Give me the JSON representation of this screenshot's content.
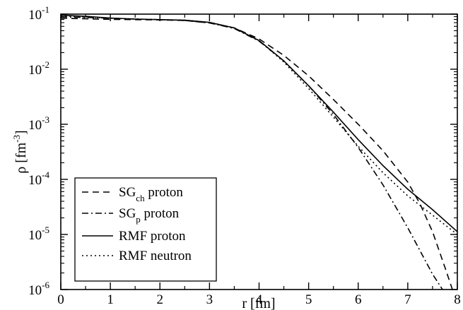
{
  "chart_data": {
    "type": "line",
    "xlabel": "r [fm]",
    "ylabel": {
      "main": "ρ [fm",
      "sup": "-3",
      "close": "]"
    },
    "xlim": [
      0,
      8
    ],
    "ylim_log10": [
      -6,
      -1
    ],
    "y_scale": "log",
    "grid": false,
    "legend_placement": "bottom-left",
    "x_ticks": [
      "0",
      "1",
      "2",
      "3",
      "4",
      "5",
      "6",
      "7",
      "8"
    ],
    "y_ticks": [
      {
        "base": "10",
        "exp": "-1"
      },
      {
        "base": "10",
        "exp": "-2"
      },
      {
        "base": "10",
        "exp": "-3"
      },
      {
        "base": "10",
        "exp": "-4"
      },
      {
        "base": "10",
        "exp": "-5"
      },
      {
        "base": "10",
        "exp": "-6"
      }
    ],
    "series": [
      {
        "key": "sg-ch-proton",
        "label_parts": [
          "SG",
          "ch",
          " proton"
        ],
        "dash": "9,6",
        "x": [
          0.0,
          0.5,
          1.0,
          1.5,
          2.0,
          2.5,
          3.0,
          3.5,
          4.0,
          4.5,
          5.0,
          5.5,
          6.0,
          6.5,
          7.0,
          7.25,
          7.5,
          7.75,
          7.9
        ],
        "y": [
          -1.075,
          -1.085,
          -1.095,
          -1.1,
          -1.105,
          -1.115,
          -1.16,
          -1.25,
          -1.45,
          -1.75,
          -2.12,
          -2.55,
          -3.0,
          -3.48,
          -4.05,
          -4.45,
          -4.95,
          -5.6,
          -6.0
        ]
      },
      {
        "key": "sg-p-proton",
        "label_parts": [
          "SG",
          "p",
          " proton"
        ],
        "dash": "9,4,2,4",
        "x": [
          0.0,
          0.5,
          1.0,
          1.5,
          2.0,
          2.5,
          3.0,
          3.5,
          4.0,
          4.5,
          5.0,
          5.5,
          6.0,
          6.5,
          7.0,
          7.25,
          7.5,
          7.7
        ],
        "y": [
          -1.05,
          -1.06,
          -1.075,
          -1.09,
          -1.1,
          -1.115,
          -1.16,
          -1.26,
          -1.49,
          -1.85,
          -2.3,
          -2.82,
          -3.42,
          -4.1,
          -4.88,
          -5.3,
          -5.72,
          -6.0
        ]
      },
      {
        "key": "rmf-proton",
        "label_parts": [
          "RMF proton"
        ],
        "dash": "",
        "x": [
          0.0,
          0.5,
          1.0,
          1.5,
          2.0,
          2.5,
          3.0,
          3.5,
          4.0,
          4.5,
          5.0,
          5.5,
          6.0,
          6.5,
          7.0,
          7.5,
          8.0
        ],
        "y": [
          -1.02,
          -1.04,
          -1.07,
          -1.09,
          -1.1,
          -1.11,
          -1.15,
          -1.25,
          -1.48,
          -1.85,
          -2.3,
          -2.78,
          -3.28,
          -3.75,
          -4.18,
          -4.55,
          -4.95
        ]
      },
      {
        "key": "rmf-neutron",
        "label_parts": [
          "RMF neutron"
        ],
        "dash": "2,4",
        "x": [
          0.0,
          0.5,
          1.0,
          1.5,
          2.0,
          2.5,
          3.0,
          3.5,
          4.0,
          4.5,
          5.0,
          5.5,
          6.0,
          6.5,
          7.0,
          7.5,
          8.0
        ],
        "y": [
          -1.03,
          -1.05,
          -1.075,
          -1.09,
          -1.1,
          -1.11,
          -1.15,
          -1.25,
          -1.48,
          -1.87,
          -2.35,
          -2.87,
          -3.4,
          -3.88,
          -4.3,
          -4.65,
          -5.0
        ]
      }
    ]
  }
}
